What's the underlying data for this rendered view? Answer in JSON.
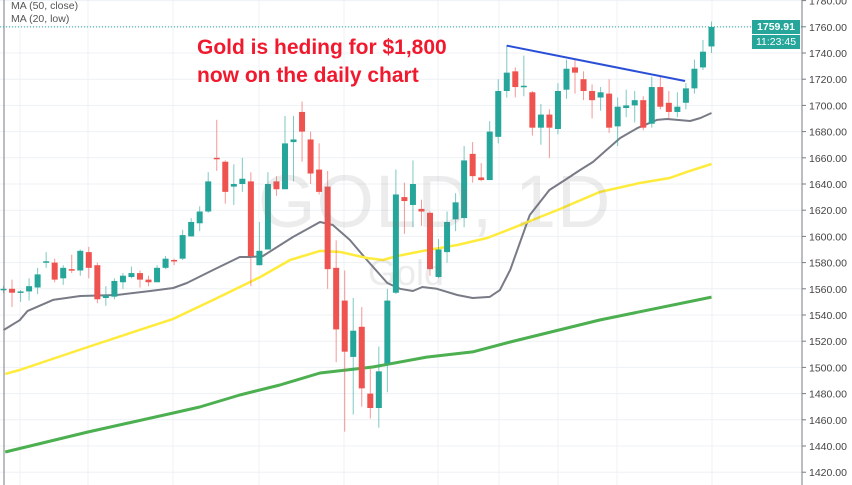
{
  "legend": {
    "ma50_label": "MA (50, close)",
    "ma20_label": "MA (20, low)"
  },
  "annotation": {
    "line1": "Gold is heding for $1,800",
    "line2": "now on the daily chart"
  },
  "watermark": {
    "symbol": "GOLD, 1D",
    "name": "Gold"
  },
  "last_price": {
    "value": "1759.91",
    "countdown": "11:23:45"
  },
  "colors": {
    "up": "#26a69a",
    "down": "#ef5350",
    "ma20": "#787b86",
    "ma50": "#ffeb3b",
    "ma_long": "#4caf50",
    "trendline": "#2a4fd6",
    "annotation": "#f0192d"
  },
  "chart_data": {
    "type": "candlestick",
    "title": "",
    "ylim": [
      1410,
      1782
    ],
    "yticks": [
      "1780.00",
      "1760.00",
      "1740.00",
      "1720.00",
      "1700.00",
      "1680.00",
      "1660.00",
      "1640.00",
      "1620.00",
      "1600.00",
      "1580.00",
      "1560.00",
      "1540.00",
      "1520.00",
      "1500.00",
      "1480.00",
      "1460.00",
      "1440.00",
      "1420.00"
    ],
    "grid": true,
    "candles_ohlc": [
      [
        1559,
        1562,
        1557,
        1560
      ],
      [
        1560,
        1567,
        1546,
        1557
      ],
      [
        1557,
        1559,
        1550,
        1558
      ],
      [
        1558,
        1568,
        1551,
        1562
      ],
      [
        1561,
        1576,
        1556,
        1571
      ],
      [
        1580,
        1588,
        1576,
        1581
      ],
      [
        1580,
        1583,
        1565,
        1567
      ],
      [
        1568,
        1578,
        1563,
        1576
      ],
      [
        1575,
        1586,
        1572,
        1574
      ],
      [
        1574,
        1590,
        1570,
        1589
      ],
      [
        1588,
        1592,
        1568,
        1576
      ],
      [
        1578,
        1580,
        1549,
        1552
      ],
      [
        1553,
        1562,
        1547,
        1555
      ],
      [
        1554,
        1568,
        1552,
        1566
      ],
      [
        1565,
        1572,
        1560,
        1570
      ],
      [
        1569,
        1577,
        1568,
        1572
      ],
      [
        1572,
        1574,
        1561,
        1567
      ],
      [
        1567,
        1570,
        1562,
        1565
      ],
      [
        1565,
        1578,
        1565,
        1576
      ],
      [
        1576,
        1585,
        1575,
        1583
      ],
      [
        1582,
        1583,
        1578,
        1581
      ],
      [
        1583,
        1605,
        1582,
        1601
      ],
      [
        1600,
        1614,
        1600,
        1611
      ],
      [
        1610,
        1623,
        1604,
        1619
      ],
      [
        1619,
        1649,
        1618,
        1642
      ],
      [
        1660,
        1689,
        1650,
        1659
      ],
      [
        1657,
        1658,
        1625,
        1634
      ],
      [
        1638,
        1655,
        1624,
        1640
      ],
      [
        1640,
        1660,
        1634,
        1644
      ],
      [
        1642,
        1649,
        1562,
        1585
      ],
      [
        1578,
        1611,
        1578,
        1589
      ],
      [
        1590,
        1649,
        1590,
        1640
      ],
      [
        1642,
        1646,
        1631,
        1636
      ],
      [
        1636,
        1692,
        1636,
        1671
      ],
      [
        1672,
        1692,
        1642,
        1674
      ],
      [
        1695,
        1703,
        1657,
        1680
      ],
      [
        1674,
        1680,
        1640,
        1648
      ],
      [
        1651,
        1671,
        1632,
        1634
      ],
      [
        1638,
        1650,
        1560,
        1575
      ],
      [
        1576,
        1597,
        1504,
        1529
      ],
      [
        1551,
        1574,
        1451,
        1512
      ],
      [
        1508,
        1553,
        1464,
        1528
      ],
      [
        1531,
        1546,
        1470,
        1484
      ],
      [
        1480,
        1499,
        1461,
        1469
      ],
      [
        1469,
        1516,
        1454,
        1497
      ],
      [
        1503,
        1560,
        1481,
        1551
      ],
      [
        1557,
        1651,
        1556,
        1632
      ],
      [
        1630,
        1641,
        1602,
        1627
      ],
      [
        1624,
        1658,
        1607,
        1640
      ],
      [
        1621,
        1628,
        1608,
        1619
      ],
      [
        1618,
        1619,
        1570,
        1575
      ],
      [
        1569,
        1598,
        1568,
        1590
      ],
      [
        1588,
        1619,
        1580,
        1611
      ],
      [
        1613,
        1633,
        1604,
        1626
      ],
      [
        1614,
        1669,
        1607,
        1658
      ],
      [
        1663,
        1672,
        1641,
        1646
      ],
      [
        1645,
        1656,
        1642,
        1643
      ],
      [
        1643,
        1688,
        1643,
        1680
      ],
      [
        1676,
        1720,
        1671,
        1711
      ],
      [
        1711,
        1746,
        1706,
        1725
      ],
      [
        1726,
        1729,
        1706,
        1714
      ],
      [
        1714,
        1738,
        1707,
        1715
      ],
      [
        1710,
        1711,
        1677,
        1683
      ],
      [
        1683,
        1701,
        1670,
        1693
      ],
      [
        1693,
        1697,
        1660,
        1683
      ],
      [
        1682,
        1717,
        1678,
        1711
      ],
      [
        1712,
        1735,
        1705,
        1728
      ],
      [
        1729,
        1735,
        1709,
        1725
      ],
      [
        1720,
        1726,
        1704,
        1711
      ],
      [
        1711,
        1716,
        1690,
        1704
      ],
      [
        1706,
        1714,
        1696,
        1710
      ],
      [
        1709,
        1720,
        1679,
        1683
      ],
      [
        1684,
        1706,
        1669,
        1699
      ],
      [
        1698,
        1712,
        1691,
        1700
      ],
      [
        1700,
        1711,
        1687,
        1704
      ],
      [
        1704,
        1707,
        1681,
        1683
      ],
      [
        1686,
        1722,
        1683,
        1714
      ],
      [
        1714,
        1722,
        1697,
        1699
      ],
      [
        1702,
        1711,
        1690,
        1695
      ],
      [
        1695,
        1710,
        1691,
        1699
      ],
      [
        1702,
        1717,
        1697,
        1713
      ],
      [
        1713,
        1735,
        1709,
        1728
      ],
      [
        1729,
        1750,
        1727,
        1741
      ],
      [
        1745,
        1764,
        1740,
        1759.91
      ]
    ],
    "series": [
      {
        "name": "MA (20, low)",
        "points": [
          [
            0,
            1528.5
          ],
          [
            1.9,
            1536
          ],
          [
            2.8,
            1543
          ],
          [
            5.8,
            1551.5
          ],
          [
            9,
            1554.5
          ],
          [
            13.3,
            1555.3
          ],
          [
            17.2,
            1558.3
          ],
          [
            19.9,
            1560.6
          ],
          [
            21.5,
            1564.4
          ],
          [
            24.6,
            1574.4
          ],
          [
            27.7,
            1584.3
          ],
          [
            28.9,
            1584.3
          ],
          [
            30.4,
            1585
          ],
          [
            33.9,
            1599.5
          ],
          [
            37.1,
            1611
          ],
          [
            38.6,
            1608.7
          ],
          [
            40.6,
            1597.3
          ],
          [
            42.6,
            1582
          ],
          [
            45,
            1564.4
          ],
          [
            46.5,
            1560
          ],
          [
            48,
            1558.3
          ],
          [
            49.1,
            1561.4
          ],
          [
            50.8,
            1560
          ],
          [
            53.2,
            1555.3
          ],
          [
            55,
            1553
          ],
          [
            57,
            1553.8
          ],
          [
            58.2,
            1559
          ],
          [
            59.4,
            1574.4
          ],
          [
            61.7,
            1616.3
          ],
          [
            64,
            1635.4
          ],
          [
            65.8,
            1643
          ],
          [
            67.6,
            1650.7
          ],
          [
            69.1,
            1656.8
          ],
          [
            70.7,
            1666
          ],
          [
            72.3,
            1675.1
          ],
          [
            74.3,
            1682.7
          ],
          [
            76.6,
            1688.9
          ],
          [
            77.8,
            1689.6
          ],
          [
            80.5,
            1688.1
          ],
          [
            81.7,
            1690.4
          ],
          [
            83,
            1694.2
          ]
        ]
      },
      {
        "name": "MA (50, close)",
        "points": [
          [
            0.2,
            1495
          ],
          [
            1.9,
            1498
          ],
          [
            9.9,
            1515.6
          ],
          [
            19.9,
            1537
          ],
          [
            24.6,
            1551.5
          ],
          [
            27.7,
            1561.4
          ],
          [
            30.1,
            1569
          ],
          [
            33.6,
            1582
          ],
          [
            37.1,
            1588.9
          ],
          [
            39.5,
            1588.1
          ],
          [
            42.6,
            1583.5
          ],
          [
            44.5,
            1582
          ],
          [
            46.1,
            1585
          ],
          [
            49.2,
            1588.9
          ],
          [
            53.2,
            1593.4
          ],
          [
            56.7,
            1598.8
          ],
          [
            59.4,
            1605.6
          ],
          [
            62.9,
            1614.8
          ],
          [
            65,
            1620.2
          ],
          [
            69.9,
            1633.9
          ],
          [
            74.6,
            1640.8
          ],
          [
            78.1,
            1644.6
          ],
          [
            80.1,
            1649.2
          ],
          [
            83,
            1655.3
          ]
        ]
      },
      {
        "points": [
          [
            0.2,
            1435.4
          ],
          [
            9.9,
            1450.7
          ],
          [
            19.9,
            1465.2
          ],
          [
            23,
            1469.8
          ],
          [
            27.7,
            1478.9
          ],
          [
            32.4,
            1486.6
          ],
          [
            37.1,
            1495.7
          ],
          [
            43.3,
            1500.3
          ],
          [
            49.6,
            1507.9
          ],
          [
            55,
            1511.8
          ],
          [
            59.4,
            1519.4
          ],
          [
            69.9,
            1536.2
          ],
          [
            83,
            1553.7
          ]
        ]
      }
    ],
    "trendline": [
      [
        59,
        1745.6
      ],
      [
        79.9,
        1718.6
      ]
    ]
  }
}
